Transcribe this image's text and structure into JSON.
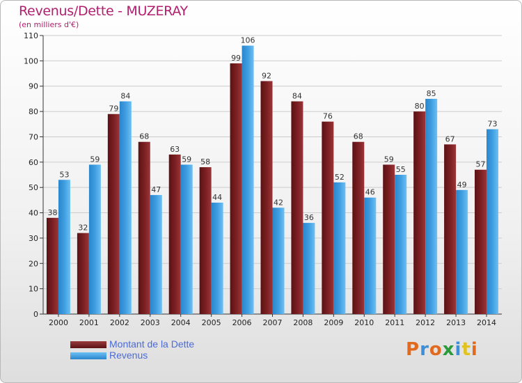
{
  "header": {
    "title": "Revenus/Dette - MUZERAY",
    "subtitle": "(en milliers d'€)"
  },
  "logo": {
    "text": "Proxiti",
    "letter_colors": [
      "#e26a1e",
      "#3c8fd8",
      "#e26a1e",
      "#2a9a3a",
      "#3c8fd8",
      "#e2c21e",
      "#e26a1e"
    ]
  },
  "colors": {
    "dette": "#7a1f22",
    "revenus": "#3f9de0",
    "grid": "#cccccc",
    "axis": "#333333"
  },
  "legend": [
    {
      "label": "Montant de la Dette",
      "series": "dette"
    },
    {
      "label": "Revenus",
      "series": "revenus"
    }
  ],
  "chart_data": {
    "type": "bar",
    "title": "Revenus/Dette - MUZERAY",
    "subtitle": "(en milliers d'€)",
    "categories": [
      "2000",
      "2001",
      "2002",
      "2003",
      "2004",
      "2005",
      "2006",
      "2007",
      "2008",
      "2009",
      "2010",
      "2011",
      "2012",
      "2013",
      "2014"
    ],
    "series": [
      {
        "name": "Montant de la Dette",
        "values": [
          38,
          32,
          79,
          68,
          63,
          58,
          99,
          92,
          84,
          76,
          68,
          59,
          80,
          67,
          57
        ]
      },
      {
        "name": "Revenus",
        "values": [
          53,
          59,
          84,
          47,
          59,
          44,
          106,
          42,
          36,
          52,
          46,
          55,
          85,
          49,
          73
        ]
      }
    ],
    "yticks": [
      0,
      10,
      20,
      30,
      40,
      50,
      60,
      70,
      80,
      90,
      100,
      110
    ],
    "ylim": [
      0,
      110
    ],
    "grid": true,
    "legend_position": "bottom-left"
  }
}
